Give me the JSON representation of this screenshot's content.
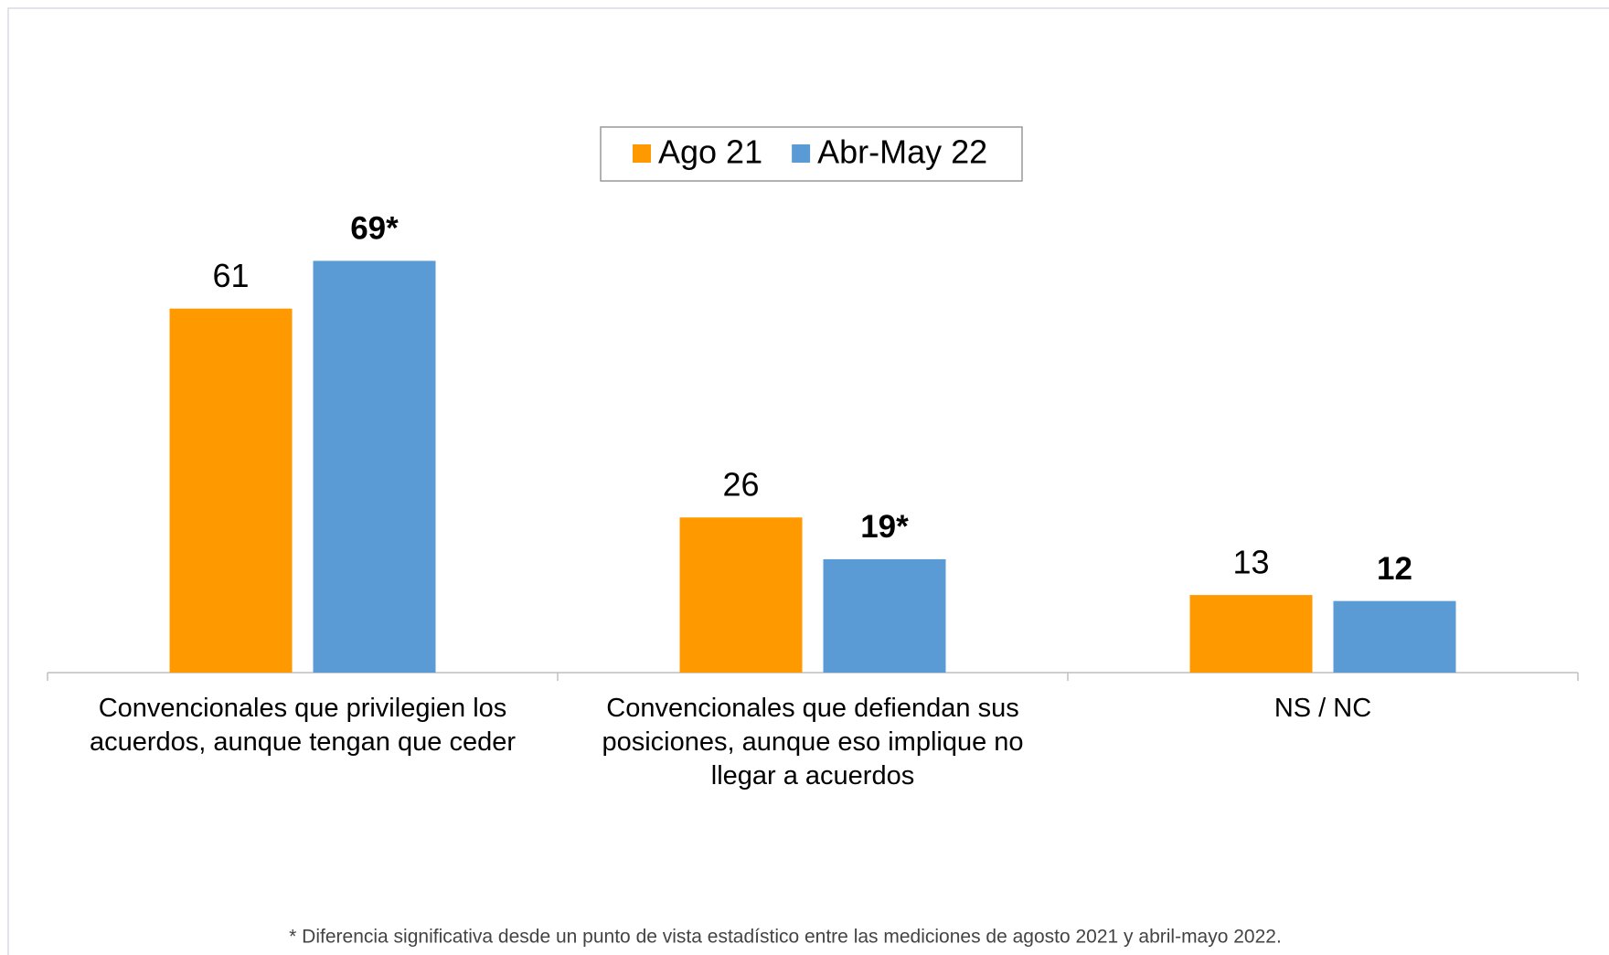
{
  "chart_data": {
    "type": "bar",
    "categories": [
      "Convencionales que privilegien los acuerdos, aunque tengan que ceder",
      "Convencionales que defiendan sus posiciones, aunque eso implique no llegar a acuerdos",
      "NS / NC"
    ],
    "series": [
      {
        "name": "Ago 21",
        "color": "#ff9900",
        "values": [
          61,
          26,
          13
        ],
        "value_labels": [
          "61",
          "26",
          "13"
        ]
      },
      {
        "name": "Abr-May 22",
        "color": "#5b9bd5",
        "values": [
          69,
          19,
          12
        ],
        "value_labels": [
          "69*",
          "19*",
          "12"
        ]
      }
    ],
    "legend": "top",
    "footnote": "* Diferencia significativa desde un punto de vista estadístico entre las mediciones de agosto 2021 y abril-mayo 2022."
  }
}
